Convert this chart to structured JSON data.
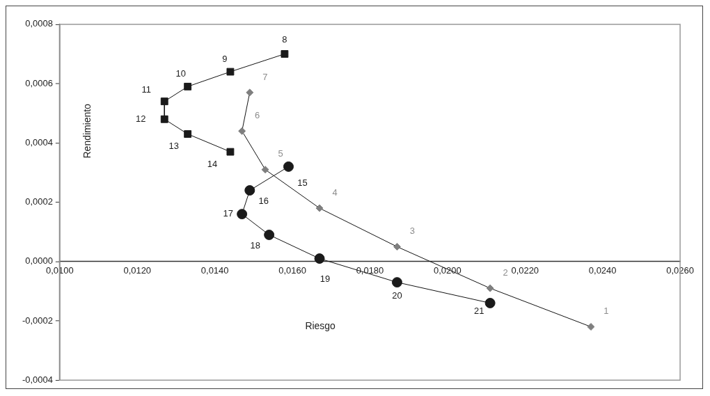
{
  "chart_data": {
    "type": "line",
    "xlabel": "Riesgo",
    "ylabel": "Rendimiento",
    "xlim": [
      0.01,
      0.026
    ],
    "ylim": [
      -0.0004,
      0.0008
    ],
    "xticks": [
      {
        "value": 0.01,
        "label": "0,0100"
      },
      {
        "value": 0.012,
        "label": "0,0120"
      },
      {
        "value": 0.014,
        "label": "0,0140"
      },
      {
        "value": 0.016,
        "label": "0,0160"
      },
      {
        "value": 0.018,
        "label": "0,0180"
      },
      {
        "value": 0.02,
        "label": "0,0200"
      },
      {
        "value": 0.022,
        "label": "0,0220"
      },
      {
        "value": 0.024,
        "label": "0,0240"
      },
      {
        "value": 0.026,
        "label": "0,0260"
      }
    ],
    "yticks": [
      {
        "value": -0.0004,
        "label": "-0,0004"
      },
      {
        "value": -0.0002,
        "label": "-0,0002"
      },
      {
        "value": 0,
        "label": "0,0000"
      },
      {
        "value": 0.0002,
        "label": "0,0002"
      },
      {
        "value": 0.0004,
        "label": "0,0004"
      },
      {
        "value": 0.0006,
        "label": "0,0006"
      },
      {
        "value": 0.0008,
        "label": "0,0008"
      }
    ],
    "grid": false,
    "legend": false,
    "series": [
      {
        "color": "#7f7f7f",
        "marker": "diamond",
        "x": [
          0.0237,
          0.0211,
          0.0187,
          0.0167,
          0.0153,
          0.0147,
          0.0149
        ],
        "values": [
          -0.00022,
          -9e-05,
          5e-05,
          0.00018,
          0.00031,
          0.00044,
          0.00057
        ]
      },
      {
        "color": "#1a1a1a",
        "marker": "square",
        "x": [
          0.0158,
          0.0144,
          0.0133,
          0.0127,
          0.0127,
          0.0133,
          0.0144
        ],
        "values": [
          0.0007,
          0.00064,
          0.00059,
          0.00054,
          0.00048,
          0.00043,
          0.00037
        ]
      },
      {
        "color": "#1a1a1a",
        "marker": "circle",
        "x": [
          0.0159,
          0.0149,
          0.0147,
          0.0154,
          0.0167,
          0.0187,
          0.0211
        ],
        "values": [
          0.00032,
          0.00024,
          0.00016,
          9e-05,
          1e-05,
          -7e-05,
          -0.00014
        ]
      }
    ],
    "annotations": [
      {
        "text": "1",
        "x": 0.0237,
        "y": -0.00022
      },
      {
        "text": "2",
        "x": 0.0211,
        "y": -9e-05
      },
      {
        "text": "3",
        "x": 0.0187,
        "y": 5e-05
      },
      {
        "text": "4",
        "x": 0.0167,
        "y": 0.00018
      },
      {
        "text": "5",
        "x": 0.0153,
        "y": 0.00031
      },
      {
        "text": "6",
        "x": 0.0147,
        "y": 0.00044
      },
      {
        "text": "7",
        "x": 0.0149,
        "y": 0.00057
      },
      {
        "text": "8",
        "x": 0.0158,
        "y": 0.0007
      },
      {
        "text": "9",
        "x": 0.0144,
        "y": 0.00064
      },
      {
        "text": "10",
        "x": 0.0133,
        "y": 0.00059
      },
      {
        "text": "11",
        "x": 0.0127,
        "y": 0.00054
      },
      {
        "text": "12",
        "x": 0.0127,
        "y": 0.00048
      },
      {
        "text": "13",
        "x": 0.0133,
        "y": 0.00043
      },
      {
        "text": "14",
        "x": 0.0144,
        "y": 0.00037
      },
      {
        "text": "15",
        "x": 0.0159,
        "y": 0.00032
      },
      {
        "text": "16",
        "x": 0.0149,
        "y": 0.00024
      },
      {
        "text": "17",
        "x": 0.0147,
        "y": 0.00016
      },
      {
        "text": "18",
        "x": 0.0154,
        "y": 9e-05
      },
      {
        "text": "19",
        "x": 0.0167,
        "y": 1e-05
      },
      {
        "text": "20",
        "x": 0.0187,
        "y": -7e-05
      },
      {
        "text": "21",
        "x": 0.0211,
        "y": -0.00014
      }
    ]
  }
}
